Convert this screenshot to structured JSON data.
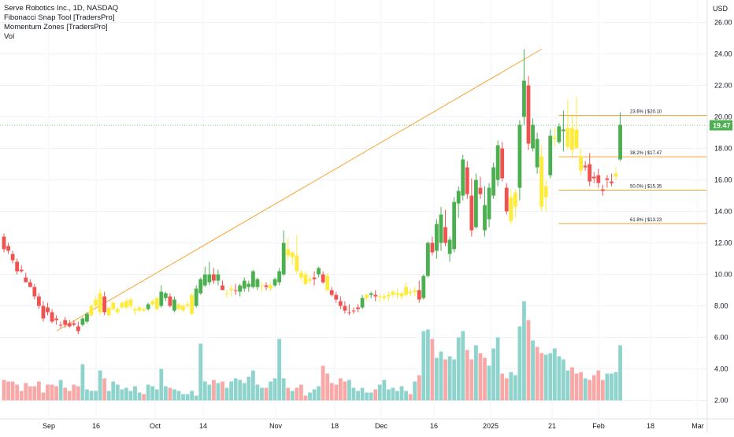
{
  "legend": {
    "title": "Serve Robotics Inc., 1D, NASDAQ",
    "indicators": [
      "Fibonacci Snap Tool [TradersPro]",
      "Momentum Zones [TradersPro]",
      "Vol"
    ]
  },
  "currency": "USD",
  "last_price": "19.47",
  "colors": {
    "up": "#4caf50",
    "down": "#ef5350",
    "neutral": "#ffeb3b",
    "vol_up": "#8fd3cd",
    "vol_down": "#f7a9a7",
    "trendline": "#f7a531",
    "fib": "#f7a531",
    "price_tag": "#4caf50"
  },
  "fib_levels": [
    {
      "label": "23.6% | $20.10",
      "price": 20.1
    },
    {
      "label": "38.2% | $17.47",
      "price": 17.47
    },
    {
      "label": "50.0% | $15.35",
      "price": 15.35
    },
    {
      "label": "61.8% | $13.23",
      "price": 13.23
    }
  ],
  "chart_data": {
    "type": "candlestick",
    "title": "Serve Robotics Inc., 1D, NASDAQ",
    "y_axis_labels": [
      "26.00",
      "24.00",
      "22.00",
      "20.00",
      "18.00",
      "16.00",
      "14.00",
      "12.00",
      "10.00",
      "8.00",
      "6.00",
      "4.00",
      "2.00"
    ],
    "y_ticks": [
      26,
      24,
      22,
      20,
      18,
      16,
      14,
      12,
      10,
      8,
      6,
      4,
      2
    ],
    "ylim": [
      1.7,
      27.2
    ],
    "x_axis_labels": [
      "Sep",
      "16",
      "Oct",
      "14",
      "Nov",
      "18",
      "Dec",
      "16",
      "2025",
      "21",
      "Feb",
      "18",
      "Mar"
    ],
    "trendline": {
      "from": [
        12,
        6.4
      ],
      "to": [
        123,
        24.3
      ]
    },
    "candles": [
      {
        "o": 12.4,
        "h": 12.6,
        "l": 11.4,
        "c": 11.6,
        "t": "d",
        "v": 3.3
      },
      {
        "o": 11.8,
        "h": 12.0,
        "l": 11.3,
        "c": 11.5,
        "t": "d",
        "v": 3.2
      },
      {
        "o": 11.3,
        "h": 11.5,
        "l": 10.7,
        "c": 10.9,
        "t": "d",
        "v": 3.2
      },
      {
        "o": 10.8,
        "h": 11.0,
        "l": 10.0,
        "c": 10.2,
        "t": "d",
        "v": 3.0
      },
      {
        "o": 10.3,
        "h": 10.6,
        "l": 10.1,
        "c": 10.2,
        "t": "d",
        "v": 2.6
      },
      {
        "o": 9.8,
        "h": 10.1,
        "l": 9.5,
        "c": 9.5,
        "t": "d",
        "v": 3.1
      },
      {
        "o": 9.5,
        "h": 9.7,
        "l": 9.2,
        "c": 9.2,
        "t": "d",
        "v": 2.9
      },
      {
        "o": 9.2,
        "h": 9.4,
        "l": 8.4,
        "c": 8.6,
        "t": "d",
        "v": 2.9
      },
      {
        "o": 8.6,
        "h": 8.8,
        "l": 7.8,
        "c": 8.0,
        "t": "d",
        "v": 3.2
      },
      {
        "o": 8.0,
        "h": 8.3,
        "l": 7.0,
        "c": 7.2,
        "t": "d",
        "v": 2.5
      },
      {
        "o": 7.9,
        "h": 8.2,
        "l": 7.4,
        "c": 7.6,
        "t": "d",
        "v": 3.0
      },
      {
        "o": 7.6,
        "h": 7.8,
        "l": 6.9,
        "c": 7.0,
        "t": "d",
        "v": 3.0
      },
      {
        "o": 7.2,
        "h": 7.4,
        "l": 6.8,
        "c": 7.1,
        "t": "d",
        "v": 2.9
      },
      {
        "o": 6.8,
        "h": 7.0,
        "l": 6.6,
        "c": 6.8,
        "t": "d",
        "v": 3.3
      },
      {
        "o": 7.1,
        "h": 7.3,
        "l": 6.6,
        "c": 6.8,
        "t": "d",
        "v": 2.8
      },
      {
        "o": 6.9,
        "h": 7.1,
        "l": 6.6,
        "c": 6.7,
        "t": "d",
        "v": 2.6
      },
      {
        "o": 6.9,
        "h": 7.1,
        "l": 6.7,
        "c": 6.8,
        "t": "d",
        "v": 3.0
      },
      {
        "o": 6.7,
        "h": 7.0,
        "l": 6.2,
        "c": 6.4,
        "t": "d",
        "v": 2.9
      },
      {
        "o": 6.8,
        "h": 7.3,
        "l": 6.7,
        "c": 7.2,
        "t": "u",
        "v": 4.3
      },
      {
        "o": 7.0,
        "h": 7.6,
        "l": 6.9,
        "c": 7.5,
        "t": "u",
        "v": 2.7
      },
      {
        "o": 7.4,
        "h": 8.1,
        "l": 7.3,
        "c": 8.0,
        "t": "n",
        "v": 2.6
      },
      {
        "o": 8.0,
        "h": 8.6,
        "l": 7.9,
        "c": 8.4,
        "t": "n",
        "v": 2.6
      },
      {
        "o": 7.6,
        "h": 9.1,
        "l": 7.4,
        "c": 8.8,
        "t": "n",
        "v": 3.9
      },
      {
        "o": 8.6,
        "h": 8.9,
        "l": 7.4,
        "c": 7.6,
        "t": "d",
        "v": 3.4
      },
      {
        "o": 7.4,
        "h": 7.9,
        "l": 7.3,
        "c": 7.9,
        "t": "n",
        "v": 2.6
      },
      {
        "o": 7.8,
        "h": 8.3,
        "l": 7.7,
        "c": 8.2,
        "t": "n",
        "v": 3.2
      },
      {
        "o": 7.6,
        "h": 7.9,
        "l": 7.5,
        "c": 7.8,
        "t": "n",
        "v": 3.0
      },
      {
        "o": 7.9,
        "h": 8.3,
        "l": 7.8,
        "c": 8.2,
        "t": "n",
        "v": 2.7
      },
      {
        "o": 7.9,
        "h": 8.5,
        "l": 7.8,
        "c": 8.3,
        "t": "n",
        "v": 2.8
      },
      {
        "o": 8.0,
        "h": 8.5,
        "l": 7.8,
        "c": 8.4,
        "t": "n",
        "v": 2.6
      },
      {
        "o": 7.7,
        "h": 7.9,
        "l": 7.4,
        "c": 7.8,
        "t": "n",
        "v": 2.9
      },
      {
        "o": 7.7,
        "h": 8.0,
        "l": 7.6,
        "c": 7.9,
        "t": "n",
        "v": 2.5
      },
      {
        "o": 7.8,
        "h": 7.9,
        "l": 7.6,
        "c": 7.7,
        "t": "n",
        "v": 2.4
      },
      {
        "o": 7.8,
        "h": 8.2,
        "l": 7.7,
        "c": 8.1,
        "t": "u",
        "v": 3.0
      },
      {
        "o": 8.1,
        "h": 8.4,
        "l": 8.0,
        "c": 8.3,
        "t": "n",
        "v": 2.9
      },
      {
        "o": 7.8,
        "h": 8.6,
        "l": 7.7,
        "c": 8.5,
        "t": "n",
        "v": 2.7
      },
      {
        "o": 8.0,
        "h": 9.3,
        "l": 7.9,
        "c": 8.9,
        "t": "u",
        "v": 4.0
      },
      {
        "o": 8.5,
        "h": 8.9,
        "l": 8.3,
        "c": 8.8,
        "t": "u",
        "v": 2.9
      },
      {
        "o": 8.6,
        "h": 8.8,
        "l": 7.9,
        "c": 8.0,
        "t": "d",
        "v": 2.8
      },
      {
        "o": 7.7,
        "h": 8.6,
        "l": 7.6,
        "c": 8.4,
        "t": "u",
        "v": 2.7
      },
      {
        "o": 7.8,
        "h": 8.2,
        "l": 7.7,
        "c": 8.1,
        "t": "n",
        "v": 2.6
      },
      {
        "o": 7.7,
        "h": 8.1,
        "l": 7.6,
        "c": 8.0,
        "t": "n",
        "v": 2.4
      },
      {
        "o": 8.0,
        "h": 8.3,
        "l": 7.9,
        "c": 8.1,
        "t": "n",
        "v": 2.4
      },
      {
        "o": 7.5,
        "h": 8.8,
        "l": 7.4,
        "c": 8.7,
        "t": "n",
        "v": 2.6
      },
      {
        "o": 8.0,
        "h": 9.3,
        "l": 7.9,
        "c": 9.1,
        "t": "u",
        "v": 2.3
      },
      {
        "o": 8.8,
        "h": 9.8,
        "l": 8.7,
        "c": 9.7,
        "t": "u",
        "v": 5.6
      },
      {
        "o": 9.3,
        "h": 10.5,
        "l": 9.2,
        "c": 10.0,
        "t": "u",
        "v": 3.2
      },
      {
        "o": 9.5,
        "h": 10.8,
        "l": 9.3,
        "c": 10.0,
        "t": "u",
        "v": 3.0
      },
      {
        "o": 10.0,
        "h": 10.4,
        "l": 9.4,
        "c": 9.6,
        "t": "d",
        "v": 3.3
      },
      {
        "o": 9.6,
        "h": 10.3,
        "l": 9.3,
        "c": 10.0,
        "t": "u",
        "v": 3.1
      },
      {
        "o": 9.3,
        "h": 9.6,
        "l": 9.0,
        "c": 9.0,
        "t": "d",
        "v": 3.2
      },
      {
        "o": 8.8,
        "h": 9.0,
        "l": 8.5,
        "c": 8.8,
        "t": "n",
        "v": 2.8
      },
      {
        "o": 9.0,
        "h": 9.3,
        "l": 8.6,
        "c": 9.1,
        "t": "n",
        "v": 3.2
      },
      {
        "o": 9.0,
        "h": 9.4,
        "l": 8.7,
        "c": 9.0,
        "t": "d",
        "v": 3.4
      },
      {
        "o": 8.9,
        "h": 9.4,
        "l": 8.6,
        "c": 9.3,
        "t": "u",
        "v": 3.3
      },
      {
        "o": 9.1,
        "h": 9.8,
        "l": 8.9,
        "c": 9.6,
        "t": "u",
        "v": 3.1
      },
      {
        "o": 9.2,
        "h": 9.6,
        "l": 8.9,
        "c": 9.4,
        "t": "u",
        "v": 3.5
      },
      {
        "o": 9.2,
        "h": 10.3,
        "l": 9.1,
        "c": 10.2,
        "t": "u",
        "v": 3.9
      },
      {
        "o": 9.2,
        "h": 9.8,
        "l": 9.0,
        "c": 9.7,
        "t": "u",
        "v": 3.0
      },
      {
        "o": 9.3,
        "h": 9.5,
        "l": 8.9,
        "c": 9.3,
        "t": "n",
        "v": 2.8
      },
      {
        "o": 9.3,
        "h": 9.5,
        "l": 9.0,
        "c": 9.2,
        "t": "d",
        "v": 2.8
      },
      {
        "o": 9.1,
        "h": 9.5,
        "l": 8.9,
        "c": 9.3,
        "t": "n",
        "v": 3.2
      },
      {
        "o": 9.3,
        "h": 9.8,
        "l": 9.2,
        "c": 9.7,
        "t": "u",
        "v": 3.4
      },
      {
        "o": 9.5,
        "h": 10.4,
        "l": 9.3,
        "c": 10.2,
        "t": "u",
        "v": 5.9
      },
      {
        "o": 10.0,
        "h": 12.8,
        "l": 9.9,
        "c": 12.0,
        "t": "u",
        "v": 3.4
      },
      {
        "o": 11.6,
        "h": 12.3,
        "l": 10.9,
        "c": 11.2,
        "t": "n",
        "v": 2.8
      },
      {
        "o": 11.1,
        "h": 11.5,
        "l": 10.6,
        "c": 11.4,
        "t": "n",
        "v": 2.6
      },
      {
        "o": 11.2,
        "h": 12.5,
        "l": 10.0,
        "c": 10.2,
        "t": "n",
        "v": 2.8
      },
      {
        "o": 10.1,
        "h": 10.3,
        "l": 9.6,
        "c": 9.8,
        "t": "n",
        "v": 3.0
      },
      {
        "o": 10.0,
        "h": 10.2,
        "l": 9.3,
        "c": 9.4,
        "t": "n",
        "v": 2.3
      },
      {
        "o": 9.6,
        "h": 9.9,
        "l": 9.4,
        "c": 9.7,
        "t": "n",
        "v": 2.5
      },
      {
        "o": 9.7,
        "h": 10.2,
        "l": 9.3,
        "c": 9.8,
        "t": "d",
        "v": 2.7
      },
      {
        "o": 10.0,
        "h": 10.5,
        "l": 9.8,
        "c": 10.4,
        "t": "u",
        "v": 2.9
      },
      {
        "o": 10.0,
        "h": 10.2,
        "l": 9.4,
        "c": 9.5,
        "t": "d",
        "v": 4.2
      },
      {
        "o": 9.9,
        "h": 10.1,
        "l": 8.9,
        "c": 9.0,
        "t": "n",
        "v": 3.7
      },
      {
        "o": 9.0,
        "h": 9.2,
        "l": 8.6,
        "c": 8.7,
        "t": "d",
        "v": 3.1
      },
      {
        "o": 8.7,
        "h": 8.9,
        "l": 8.2,
        "c": 8.4,
        "t": "d",
        "v": 3.0
      },
      {
        "o": 8.3,
        "h": 8.6,
        "l": 7.8,
        "c": 8.0,
        "t": "d",
        "v": 3.4
      },
      {
        "o": 8.0,
        "h": 8.3,
        "l": 7.5,
        "c": 7.7,
        "t": "d",
        "v": 3.2
      },
      {
        "o": 7.6,
        "h": 8.1,
        "l": 7.4,
        "c": 7.6,
        "t": "d",
        "v": 3.3
      },
      {
        "o": 7.7,
        "h": 7.9,
        "l": 7.5,
        "c": 7.7,
        "t": "d",
        "v": 2.8
      },
      {
        "o": 7.8,
        "h": 8.1,
        "l": 7.6,
        "c": 7.9,
        "t": "d",
        "v": 2.6
      },
      {
        "o": 7.9,
        "h": 8.7,
        "l": 7.8,
        "c": 8.5,
        "t": "u",
        "v": 2.8
      },
      {
        "o": 8.5,
        "h": 8.8,
        "l": 8.3,
        "c": 8.7,
        "t": "n",
        "v": 2.5
      },
      {
        "o": 8.7,
        "h": 8.9,
        "l": 8.5,
        "c": 8.8,
        "t": "u",
        "v": 2.5
      },
      {
        "o": 8.7,
        "h": 9.0,
        "l": 8.3,
        "c": 8.6,
        "t": "d",
        "v": 2.7
      },
      {
        "o": 8.6,
        "h": 8.8,
        "l": 8.2,
        "c": 8.6,
        "t": "n",
        "v": 3.0
      },
      {
        "o": 8.5,
        "h": 8.8,
        "l": 8.3,
        "c": 8.6,
        "t": "n",
        "v": 3.3
      },
      {
        "o": 8.6,
        "h": 8.9,
        "l": 8.3,
        "c": 8.7,
        "t": "n",
        "v": 2.7
      },
      {
        "o": 8.7,
        "h": 9.0,
        "l": 8.5,
        "c": 8.9,
        "t": "n",
        "v": 2.8
      },
      {
        "o": 8.7,
        "h": 9.1,
        "l": 8.4,
        "c": 8.8,
        "t": "n",
        "v": 2.6
      },
      {
        "o": 8.6,
        "h": 8.9,
        "l": 8.4,
        "c": 8.8,
        "t": "n",
        "v": 2.9
      },
      {
        "o": 8.7,
        "h": 9.5,
        "l": 8.6,
        "c": 9.2,
        "t": "n",
        "v": 2.6
      },
      {
        "o": 8.9,
        "h": 9.1,
        "l": 8.6,
        "c": 8.8,
        "t": "n",
        "v": 2.4
      },
      {
        "o": 8.9,
        "h": 9.2,
        "l": 8.6,
        "c": 9.0,
        "t": "n",
        "v": 3.2
      },
      {
        "o": 9.0,
        "h": 9.6,
        "l": 8.2,
        "c": 8.4,
        "t": "d",
        "v": 3.6
      },
      {
        "o": 8.5,
        "h": 10.0,
        "l": 8.4,
        "c": 9.9,
        "t": "u",
        "v": 6.4
      },
      {
        "o": 9.9,
        "h": 12.1,
        "l": 9.8,
        "c": 12.0,
        "t": "u",
        "v": 6.5
      },
      {
        "o": 12.0,
        "h": 12.4,
        "l": 11.2,
        "c": 11.4,
        "t": "d",
        "v": 5.9
      },
      {
        "o": 11.5,
        "h": 13.5,
        "l": 11.0,
        "c": 13.2,
        "t": "u",
        "v": 4.7
      },
      {
        "o": 12.0,
        "h": 14.3,
        "l": 11.5,
        "c": 13.8,
        "t": "u",
        "v": 5.1
      },
      {
        "o": 13.0,
        "h": 14.1,
        "l": 11.8,
        "c": 12.0,
        "t": "d",
        "v": 4.6
      },
      {
        "o": 11.3,
        "h": 12.4,
        "l": 10.8,
        "c": 12.2,
        "t": "u",
        "v": 4.8
      },
      {
        "o": 11.6,
        "h": 14.9,
        "l": 11.4,
        "c": 14.6,
        "t": "u",
        "v": 4.6
      },
      {
        "o": 14.5,
        "h": 15.6,
        "l": 13.6,
        "c": 15.3,
        "t": "u",
        "v": 6.0
      },
      {
        "o": 15.0,
        "h": 17.6,
        "l": 14.7,
        "c": 17.3,
        "t": "u",
        "v": 6.4
      },
      {
        "o": 16.8,
        "h": 17.2,
        "l": 14.8,
        "c": 15.1,
        "t": "d",
        "v": 5.2
      },
      {
        "o": 15.0,
        "h": 16.1,
        "l": 12.4,
        "c": 12.8,
        "t": "d",
        "v": 4.6
      },
      {
        "o": 13.0,
        "h": 16.4,
        "l": 12.9,
        "c": 16.0,
        "t": "u",
        "v": 5.5
      },
      {
        "o": 15.5,
        "h": 16.2,
        "l": 14.8,
        "c": 15.1,
        "t": "d",
        "v": 5.0
      },
      {
        "o": 14.4,
        "h": 15.6,
        "l": 12.4,
        "c": 12.8,
        "t": "u",
        "v": 4.7
      },
      {
        "o": 13.5,
        "h": 15.8,
        "l": 13.0,
        "c": 15.5,
        "t": "u",
        "v": 4.2
      },
      {
        "o": 15.0,
        "h": 17.1,
        "l": 14.8,
        "c": 16.8,
        "t": "u",
        "v": 5.3
      },
      {
        "o": 16.0,
        "h": 18.5,
        "l": 15.6,
        "c": 18.2,
        "t": "u",
        "v": 6.0
      },
      {
        "o": 18.0,
        "h": 18.4,
        "l": 15.9,
        "c": 16.1,
        "t": "d",
        "v": 3.7
      },
      {
        "o": 15.5,
        "h": 15.8,
        "l": 13.8,
        "c": 14.0,
        "t": "d",
        "v": 3.4
      },
      {
        "o": 13.4,
        "h": 15.4,
        "l": 13.2,
        "c": 14.9,
        "t": "n",
        "v": 3.8
      },
      {
        "o": 14.3,
        "h": 15.4,
        "l": 13.6,
        "c": 15.2,
        "t": "n",
        "v": 3.6
      },
      {
        "o": 15.5,
        "h": 19.8,
        "l": 14.7,
        "c": 19.5,
        "t": "u",
        "v": 6.7
      },
      {
        "o": 20.0,
        "h": 24.3,
        "l": 19.5,
        "c": 22.3,
        "t": "u",
        "v": 8.3
      },
      {
        "o": 22.0,
        "h": 22.6,
        "l": 17.9,
        "c": 18.3,
        "t": "d",
        "v": 7.1
      },
      {
        "o": 18.0,
        "h": 19.9,
        "l": 17.8,
        "c": 19.5,
        "t": "u",
        "v": 5.8
      },
      {
        "o": 18.6,
        "h": 19.0,
        "l": 16.4,
        "c": 16.8,
        "t": "u",
        "v": 5.4
      },
      {
        "o": 17.5,
        "h": 18.2,
        "l": 14.0,
        "c": 14.3,
        "t": "n",
        "v": 5.0
      },
      {
        "o": 14.9,
        "h": 16.0,
        "l": 14.0,
        "c": 15.6,
        "t": "n",
        "v": 4.9
      },
      {
        "o": 16.3,
        "h": 19.2,
        "l": 16.1,
        "c": 18.8,
        "t": "u",
        "v": 5.0
      },
      {
        "o": 18.6,
        "h": 19.3,
        "l": 18.1,
        "c": 18.7,
        "t": "n",
        "v": 5.3
      },
      {
        "o": 18.4,
        "h": 19.6,
        "l": 18.3,
        "c": 19.4,
        "t": "u",
        "v": 4.8
      },
      {
        "o": 19.1,
        "h": 20.4,
        "l": 17.8,
        "c": 19.2,
        "t": "u",
        "v": 4.6
      },
      {
        "o": 18.1,
        "h": 21.1,
        "l": 17.9,
        "c": 19.3,
        "t": "n",
        "v": 3.9
      },
      {
        "o": 19.3,
        "h": 20.2,
        "l": 17.5,
        "c": 17.9,
        "t": "n",
        "v": 4.1
      },
      {
        "o": 19.2,
        "h": 21.3,
        "l": 18.0,
        "c": 18.0,
        "t": "n",
        "v": 3.7
      },
      {
        "o": 17.5,
        "h": 18.0,
        "l": 16.3,
        "c": 16.6,
        "t": "n",
        "v": 3.8
      },
      {
        "o": 16.8,
        "h": 17.2,
        "l": 16.6,
        "c": 16.9,
        "t": "d",
        "v": 3.4
      },
      {
        "o": 17.0,
        "h": 17.7,
        "l": 15.6,
        "c": 15.9,
        "t": "d",
        "v": 3.3
      },
      {
        "o": 16.2,
        "h": 16.5,
        "l": 15.8,
        "c": 16.1,
        "t": "d",
        "v": 3.6
      },
      {
        "o": 16.3,
        "h": 16.7,
        "l": 15.5,
        "c": 15.8,
        "t": "d",
        "v": 3.9
      },
      {
        "o": 15.4,
        "h": 15.7,
        "l": 15.0,
        "c": 15.3,
        "t": "d",
        "v": 3.3
      },
      {
        "o": 16.0,
        "h": 16.3,
        "l": 15.5,
        "c": 16.1,
        "t": "d",
        "v": 3.7
      },
      {
        "o": 15.8,
        "h": 16.4,
        "l": 15.6,
        "c": 15.9,
        "t": "d",
        "v": 3.7
      },
      {
        "o": 16.2,
        "h": 16.8,
        "l": 16.0,
        "c": 16.4,
        "t": "n",
        "v": 3.8
      },
      {
        "o": 17.3,
        "h": 20.3,
        "l": 17.2,
        "c": 19.5,
        "t": "u",
        "v": 5.5
      }
    ]
  }
}
